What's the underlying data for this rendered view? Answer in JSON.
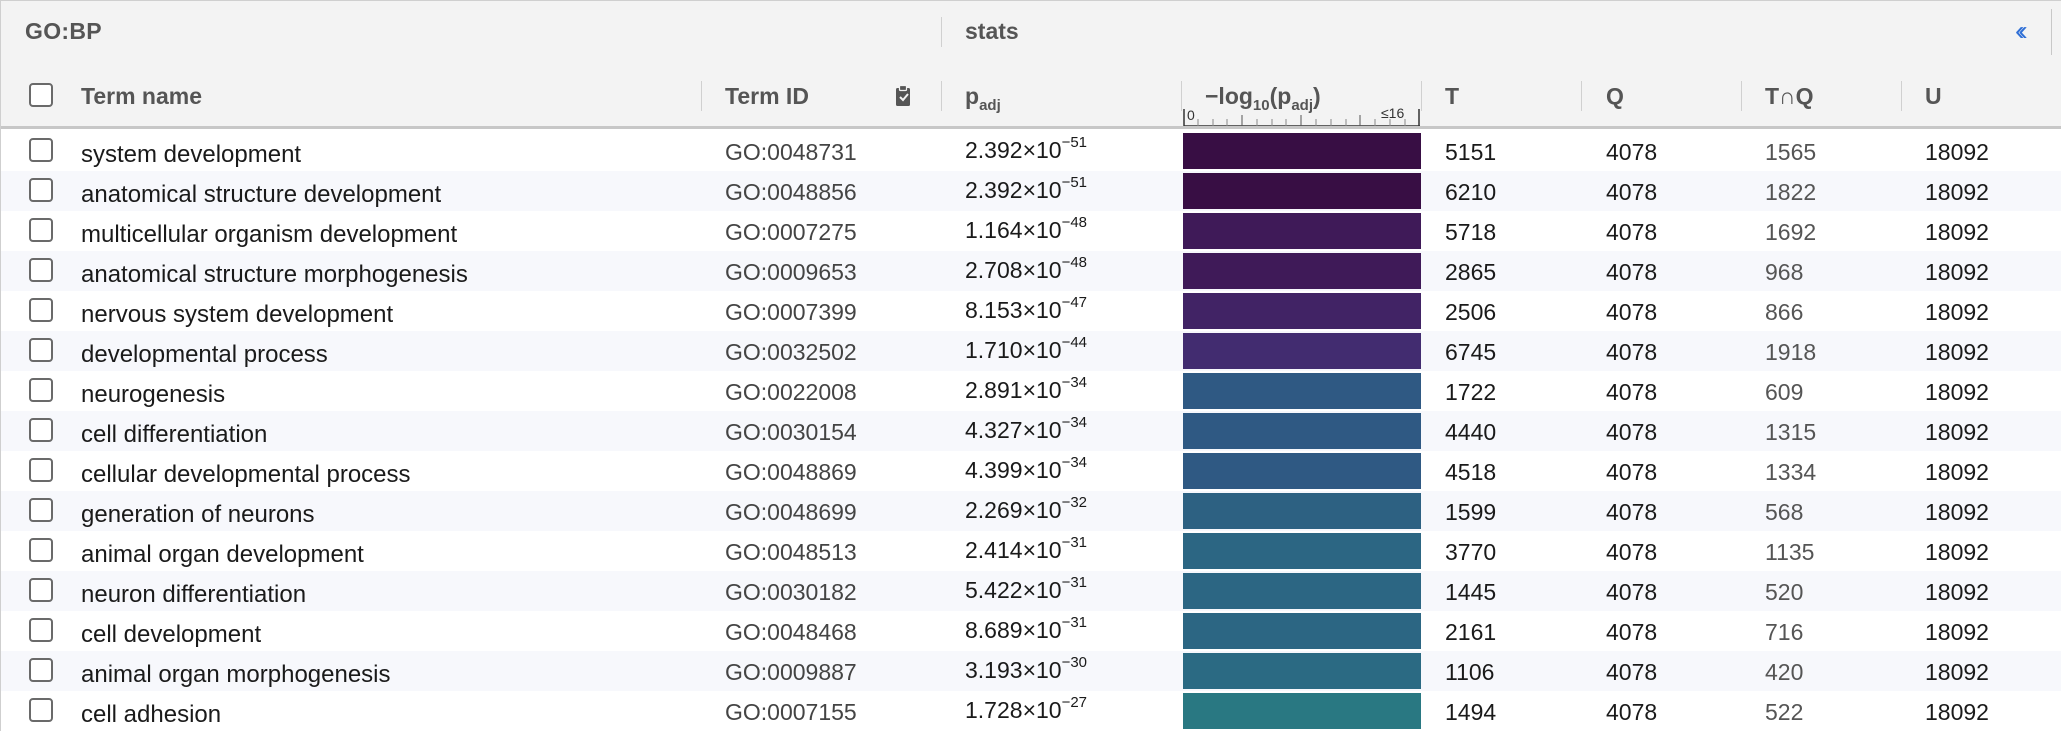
{
  "group_header": {
    "source_label": "GO:BP",
    "stats_label": "stats",
    "collapse_glyph": "‹‹"
  },
  "columns": {
    "term_name": "Term name",
    "term_id": "Term ID",
    "padj_main": "p",
    "padj_sub": "adj",
    "neglog_prefix": "−log",
    "neglog_base": "10",
    "neglog_open": "(p",
    "neglog_sub": "adj",
    "neglog_close": ")",
    "axis_min": "0",
    "axis_max": "≤16",
    "t": "T",
    "q": "Q",
    "tq": "T∩Q",
    "u": "U"
  },
  "icons": {
    "copy_clipboard": "clipboard-icon",
    "collapse": "double-chevron-left-icon"
  },
  "colors": {
    "header_bg": "#f3f3f3",
    "header_text": "#555555",
    "link_blue": "#2f6fd6",
    "alt_row": "#f7f8fc"
  },
  "rows": [
    {
      "name": "system development",
      "id": "GO:0048731",
      "mant": "2.392",
      "exp": "−51",
      "t": "5151",
      "q": "4078",
      "tq": "1565",
      "u": "18092",
      "color": "#380e44"
    },
    {
      "name": "anatomical structure development",
      "id": "GO:0048856",
      "mant": "2.392",
      "exp": "−51",
      "t": "6210",
      "q": "4078",
      "tq": "1822",
      "u": "18092",
      "color": "#380e44"
    },
    {
      "name": "multicellular organism development",
      "id": "GO:0007275",
      "mant": "1.164",
      "exp": "−48",
      "t": "5718",
      "q": "4078",
      "tq": "1692",
      "u": "18092",
      "color": "#3f1a58"
    },
    {
      "name": "anatomical structure morphogenesis",
      "id": "GO:0009653",
      "mant": "2.708",
      "exp": "−48",
      "t": "2865",
      "q": "4078",
      "tq": "968",
      "u": "18092",
      "color": "#3f1a58"
    },
    {
      "name": "nervous system development",
      "id": "GO:0007399",
      "mant": "8.153",
      "exp": "−47",
      "t": "2506",
      "q": "4078",
      "tq": "866",
      "u": "18092",
      "color": "#412365"
    },
    {
      "name": "developmental process",
      "id": "GO:0032502",
      "mant": "1.710",
      "exp": "−44",
      "t": "6745",
      "q": "4078",
      "tq": "1918",
      "u": "18092",
      "color": "#422c70"
    },
    {
      "name": "neurogenesis",
      "id": "GO:0022008",
      "mant": "2.891",
      "exp": "−34",
      "t": "1722",
      "q": "4078",
      "tq": "609",
      "u": "18092",
      "color": "#2f5983"
    },
    {
      "name": "cell differentiation",
      "id": "GO:0030154",
      "mant": "4.327",
      "exp": "−34",
      "t": "4440",
      "q": "4078",
      "tq": "1315",
      "u": "18092",
      "color": "#2f5983"
    },
    {
      "name": "cellular developmental process",
      "id": "GO:0048869",
      "mant": "4.399",
      "exp": "−34",
      "t": "4518",
      "q": "4078",
      "tq": "1334",
      "u": "18092",
      "color": "#2f5983"
    },
    {
      "name": "generation of neurons",
      "id": "GO:0048699",
      "mant": "2.269",
      "exp": "−32",
      "t": "1599",
      "q": "4078",
      "tq": "568",
      "u": "18092",
      "color": "#2d6182"
    },
    {
      "name": "animal organ development",
      "id": "GO:0048513",
      "mant": "2.414",
      "exp": "−31",
      "t": "3770",
      "q": "4078",
      "tq": "1135",
      "u": "18092",
      "color": "#2c6683"
    },
    {
      "name": "neuron differentiation",
      "id": "GO:0030182",
      "mant": "5.422",
      "exp": "−31",
      "t": "1445",
      "q": "4078",
      "tq": "520",
      "u": "18092",
      "color": "#2c6683"
    },
    {
      "name": "cell development",
      "id": "GO:0048468",
      "mant": "8.689",
      "exp": "−31",
      "t": "2161",
      "q": "4078",
      "tq": "716",
      "u": "18092",
      "color": "#2c6683"
    },
    {
      "name": "animal organ morphogenesis",
      "id": "GO:0009887",
      "mant": "3.193",
      "exp": "−30",
      "t": "1106",
      "q": "4078",
      "tq": "420",
      "u": "18092",
      "color": "#2b6a83"
    },
    {
      "name": "cell adhesion",
      "id": "GO:0007155",
      "mant": "1.728",
      "exp": "−27",
      "t": "1494",
      "q": "4078",
      "tq": "522",
      "u": "18092",
      "color": "#297882"
    }
  ]
}
